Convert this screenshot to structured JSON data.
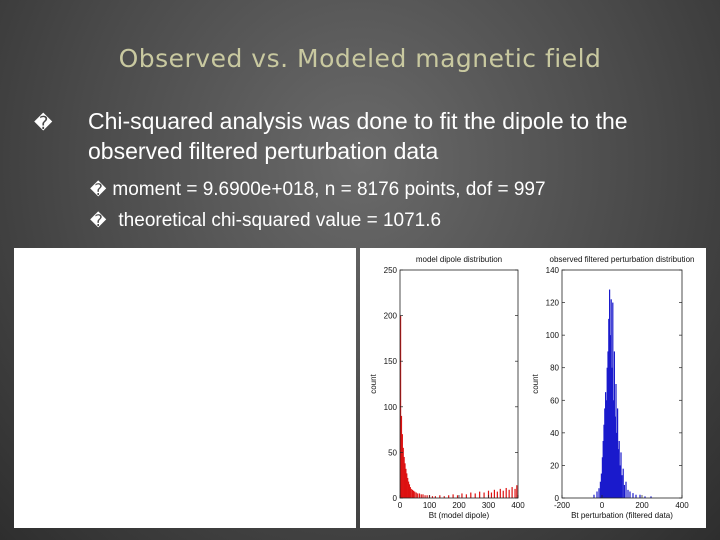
{
  "slide": {
    "title": "Observed vs. Modeled magnetic field",
    "bullet": {
      "icon": "box-bullet-icon",
      "text": "Chi-squared analysis was done to fit the dipole to the observed filtered perturbation data"
    },
    "sub_bullets": [
      {
        "icon": "box-bullet-icon",
        "text": "moment = 9.6900e+018, n = 8176 points, dof = 997"
      },
      {
        "icon": "box-bullet-icon",
        "text": "theoretical chi-squared value = 1071.6"
      }
    ],
    "bullet_glyph": "�"
  },
  "chart_data": [
    {
      "type": "bar",
      "title": "model dipole distribution",
      "xlabel": "Bt (model dipole)",
      "ylabel": "count",
      "xlim": [
        0,
        400
      ],
      "ylim": [
        0,
        250
      ],
      "xticks": [
        0,
        100,
        200,
        300,
        400
      ],
      "yticks": [
        0,
        50,
        100,
        150,
        200,
        250
      ],
      "color": "#dd1111",
      "bins": [
        {
          "x": 2,
          "y": 200
        },
        {
          "x": 5,
          "y": 90
        },
        {
          "x": 8,
          "y": 70
        },
        {
          "x": 11,
          "y": 55
        },
        {
          "x": 14,
          "y": 45
        },
        {
          "x": 17,
          "y": 38
        },
        {
          "x": 20,
          "y": 32
        },
        {
          "x": 23,
          "y": 27
        },
        {
          "x": 26,
          "y": 22
        },
        {
          "x": 29,
          "y": 18
        },
        {
          "x": 32,
          "y": 15
        },
        {
          "x": 35,
          "y": 12
        },
        {
          "x": 38,
          "y": 10
        },
        {
          "x": 42,
          "y": 9
        },
        {
          "x": 46,
          "y": 8
        },
        {
          "x": 50,
          "y": 7
        },
        {
          "x": 55,
          "y": 6
        },
        {
          "x": 60,
          "y": 5
        },
        {
          "x": 66,
          "y": 5
        },
        {
          "x": 72,
          "y": 4
        },
        {
          "x": 78,
          "y": 4
        },
        {
          "x": 85,
          "y": 3
        },
        {
          "x": 92,
          "y": 3
        },
        {
          "x": 100,
          "y": 3
        },
        {
          "x": 110,
          "y": 2
        },
        {
          "x": 120,
          "y": 2
        },
        {
          "x": 135,
          "y": 3
        },
        {
          "x": 150,
          "y": 2
        },
        {
          "x": 165,
          "y": 3
        },
        {
          "x": 180,
          "y": 4
        },
        {
          "x": 195,
          "y": 3
        },
        {
          "x": 210,
          "y": 5
        },
        {
          "x": 225,
          "y": 4
        },
        {
          "x": 240,
          "y": 6
        },
        {
          "x": 255,
          "y": 5
        },
        {
          "x": 270,
          "y": 7
        },
        {
          "x": 285,
          "y": 6
        },
        {
          "x": 300,
          "y": 8
        },
        {
          "x": 310,
          "y": 6
        },
        {
          "x": 320,
          "y": 9
        },
        {
          "x": 330,
          "y": 7
        },
        {
          "x": 340,
          "y": 10
        },
        {
          "x": 350,
          "y": 8
        },
        {
          "x": 360,
          "y": 11
        },
        {
          "x": 370,
          "y": 9
        },
        {
          "x": 380,
          "y": 12
        },
        {
          "x": 390,
          "y": 10
        },
        {
          "x": 396,
          "y": 14
        }
      ]
    },
    {
      "type": "bar",
      "title": "observed filtered perturbation distribution",
      "xlabel": "Bt perturbation (filtered data)",
      "ylabel": "count",
      "xlim": [
        -200,
        400
      ],
      "ylim": [
        0,
        140
      ],
      "xticks": [
        -200,
        0,
        200,
        400
      ],
      "yticks": [
        0,
        20,
        40,
        60,
        80,
        100,
        120,
        140
      ],
      "color": "#1a1acc",
      "bins": [
        {
          "x": -40,
          "y": 2
        },
        {
          "x": -25,
          "y": 4
        },
        {
          "x": -15,
          "y": 6
        },
        {
          "x": -8,
          "y": 10
        },
        {
          "x": -3,
          "y": 15
        },
        {
          "x": 2,
          "y": 25
        },
        {
          "x": 6,
          "y": 35
        },
        {
          "x": 10,
          "y": 45
        },
        {
          "x": 14,
          "y": 55
        },
        {
          "x": 18,
          "y": 65
        },
        {
          "x": 22,
          "y": 60
        },
        {
          "x": 26,
          "y": 80
        },
        {
          "x": 30,
          "y": 90
        },
        {
          "x": 34,
          "y": 110
        },
        {
          "x": 38,
          "y": 128
        },
        {
          "x": 42,
          "y": 100
        },
        {
          "x": 46,
          "y": 122
        },
        {
          "x": 50,
          "y": 80
        },
        {
          "x": 54,
          "y": 120
        },
        {
          "x": 58,
          "y": 60
        },
        {
          "x": 62,
          "y": 90
        },
        {
          "x": 66,
          "y": 50
        },
        {
          "x": 70,
          "y": 70
        },
        {
          "x": 74,
          "y": 40
        },
        {
          "x": 78,
          "y": 55
        },
        {
          "x": 82,
          "y": 30
        },
        {
          "x": 86,
          "y": 35
        },
        {
          "x": 90,
          "y": 20
        },
        {
          "x": 95,
          "y": 28
        },
        {
          "x": 100,
          "y": 14
        },
        {
          "x": 106,
          "y": 18
        },
        {
          "x": 112,
          "y": 8
        },
        {
          "x": 120,
          "y": 10
        },
        {
          "x": 130,
          "y": 5
        },
        {
          "x": 140,
          "y": 4
        },
        {
          "x": 155,
          "y": 3
        },
        {
          "x": 170,
          "y": 2
        },
        {
          "x": 190,
          "y": 2
        },
        {
          "x": 215,
          "y": 1
        },
        {
          "x": 245,
          "y": 1
        }
      ]
    }
  ]
}
